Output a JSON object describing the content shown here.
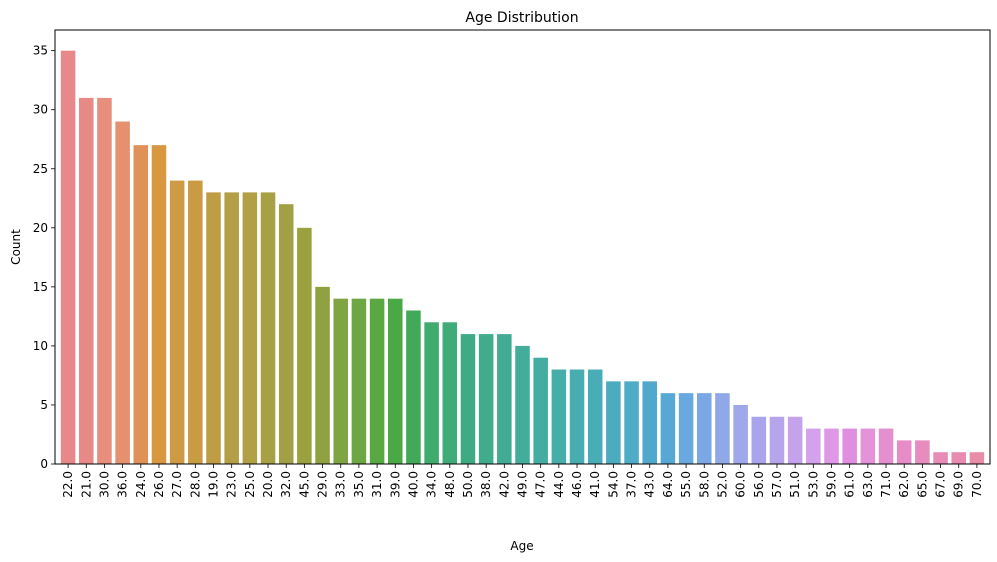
{
  "chart_data": {
    "type": "bar",
    "title": "Age Distribution",
    "xlabel": "Age",
    "ylabel": "Count",
    "ylim": [
      0,
      36.75
    ],
    "yticks": [
      "0",
      "5",
      "10",
      "15",
      "20",
      "25",
      "30",
      "35"
    ],
    "grid": false,
    "categories": [
      "22.0",
      "21.0",
      "30.0",
      "36.0",
      "24.0",
      "26.0",
      "27.0",
      "28.0",
      "19.0",
      "23.0",
      "25.0",
      "20.0",
      "32.0",
      "45.0",
      "29.0",
      "33.0",
      "35.0",
      "31.0",
      "39.0",
      "40.0",
      "34.0",
      "48.0",
      "50.0",
      "38.0",
      "42.0",
      "49.0",
      "47.0",
      "44.0",
      "46.0",
      "41.0",
      "54.0",
      "37.0",
      "43.0",
      "64.0",
      "55.0",
      "58.0",
      "52.0",
      "60.0",
      "56.0",
      "57.0",
      "51.0",
      "53.0",
      "59.0",
      "61.0",
      "63.0",
      "71.0",
      "62.0",
      "65.0",
      "67.0",
      "69.0",
      "70.0"
    ],
    "values": [
      35,
      31,
      31,
      29,
      27,
      27,
      24,
      24,
      23,
      23,
      23,
      23,
      22,
      20,
      15,
      14,
      14,
      14,
      14,
      13,
      12,
      12,
      11,
      11,
      11,
      10,
      9,
      8,
      8,
      8,
      7,
      7,
      7,
      6,
      6,
      6,
      6,
      5,
      4,
      4,
      4,
      3,
      3,
      3,
      3,
      3,
      2,
      2,
      1,
      1,
      1
    ],
    "colors": [
      "#e8888a",
      "#e78a85",
      "#e78e7c",
      "#e59170",
      "#df9157",
      "#d9973f",
      "#cf9a44",
      "#c99b43",
      "#bf9d44",
      "#b39f45",
      "#b1a046",
      "#a8a045",
      "#a2a044",
      "#9ca13f",
      "#8fa140",
      "#7fa443",
      "#6ca744",
      "#59a842",
      "#4aa944",
      "#40aa59",
      "#3fab6d",
      "#3eab79",
      "#3fab83",
      "#40ac8c",
      "#41ac93",
      "#42ad9b",
      "#43ada2",
      "#45adaa",
      "#47adb1",
      "#49adb7",
      "#4bacbf",
      "#4eacc6",
      "#50a9cd",
      "#58a8d6",
      "#6aa9df",
      "#7ba8e4",
      "#90a8e8",
      "#9ea8ea",
      "#a9a4eb",
      "#b7a5ec",
      "#c4a3ec",
      "#d4a2ec",
      "#de98e6",
      "#e08edf",
      "#e492d9",
      "#e48fd0",
      "#e68dc8",
      "#e68cbe",
      "#e68cb6",
      "#e88caf",
      "#e88da8"
    ]
  }
}
